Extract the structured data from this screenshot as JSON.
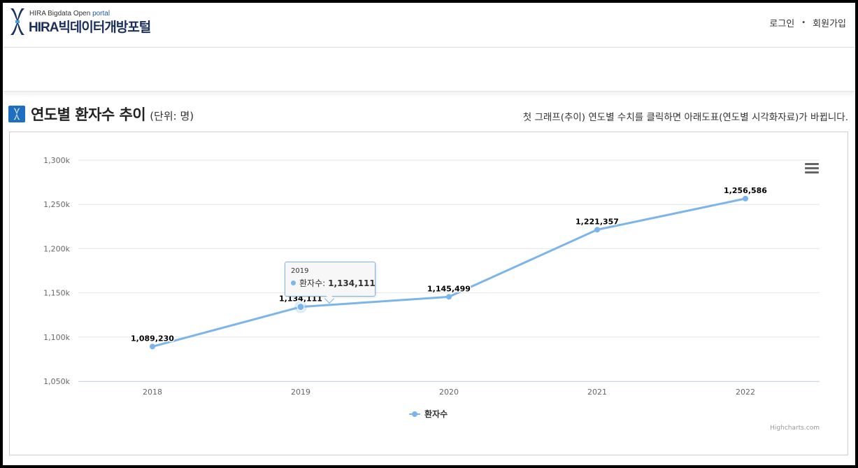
{
  "header": {
    "logo_sub_prefix": "HIRA Bigdata Open ",
    "logo_sub_accent": "portal",
    "logo_main": "HIRA빅데이터개방포털",
    "login_label": "로그인",
    "separator": "•",
    "signup_label": "회원가입"
  },
  "section": {
    "title": "연도별 환자수 추이",
    "unit": "(단위: 명)",
    "note": "첫 그래프(추이) 연도별 수치를 클릭하면 아래도표(연도별 시각화자료)가 바뀝니다."
  },
  "colors": {
    "series": "#7cb5ec",
    "accent": "#1f6fc1"
  },
  "chart_data": {
    "type": "line",
    "categories": [
      "2018",
      "2019",
      "2020",
      "2021",
      "2022"
    ],
    "series": [
      {
        "name": "환자수",
        "values": [
          1089230,
          1134111,
          1145499,
          1221357,
          1256586
        ],
        "labels": [
          "1,089,230",
          "1,134,111",
          "1,145,499",
          "1,221,357",
          "1,256,586"
        ]
      }
    ],
    "ylim": [
      1050000,
      1300000
    ],
    "yticks": [
      1050000,
      1100000,
      1150000,
      1200000,
      1250000,
      1300000
    ],
    "ytick_labels": [
      "1,050k",
      "1,100k",
      "1,150k",
      "1,200k",
      "1,250k",
      "1,300k"
    ],
    "grid": true,
    "legend_position": "bottom-center",
    "tooltip": {
      "header": "2019",
      "series_label": "환자수:",
      "value": "1,134,111",
      "highlight_index": 1
    },
    "credit": "Highcharts.com",
    "menu_icon": "hamburger-menu-icon"
  }
}
